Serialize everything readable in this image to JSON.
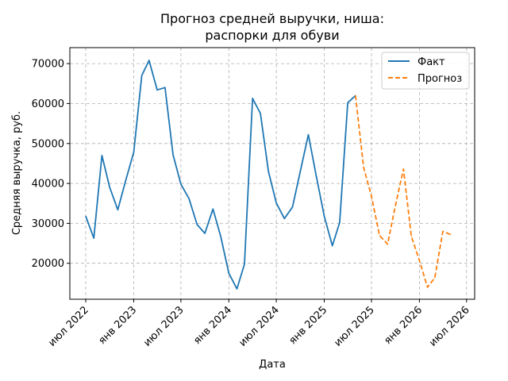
{
  "chart_data": {
    "type": "line",
    "title_lines": [
      "Прогноз средней выручки, ниша:",
      "распорки для обуви"
    ],
    "xlabel": "Дата",
    "ylabel": "Средняя выручка, руб.",
    "ylim": [
      11000,
      74000
    ],
    "yticks": [
      20000,
      30000,
      40000,
      50000,
      60000,
      70000
    ],
    "xlim": [
      "2022-05-01",
      "2026-08-01"
    ],
    "xticks": [
      {
        "date": "2022-07-01",
        "label": "июл 2022"
      },
      {
        "date": "2023-01-01",
        "label": "янв 2023"
      },
      {
        "date": "2023-07-01",
        "label": "июл 2023"
      },
      {
        "date": "2024-01-01",
        "label": "янв 2024"
      },
      {
        "date": "2024-07-01",
        "label": "июл 2024"
      },
      {
        "date": "2025-01-01",
        "label": "янв 2025"
      },
      {
        "date": "2025-07-01",
        "label": "июл 2025"
      },
      {
        "date": "2026-01-01",
        "label": "янв 2026"
      },
      {
        "date": "2026-07-01",
        "label": "июл 2026"
      }
    ],
    "grid": true,
    "legend_position": "top-right",
    "series": [
      {
        "name": "Факт",
        "color": "#1f77b4",
        "style": "solid",
        "x": [
          "2022-07-01",
          "2022-08-01",
          "2022-09-01",
          "2022-10-01",
          "2022-11-01",
          "2022-12-01",
          "2023-01-01",
          "2023-02-01",
          "2023-03-01",
          "2023-04-01",
          "2023-05-01",
          "2023-06-01",
          "2023-07-01",
          "2023-08-01",
          "2023-09-01",
          "2023-10-01",
          "2023-11-01",
          "2023-12-01",
          "2024-01-01",
          "2024-02-01",
          "2024-03-01",
          "2024-04-01",
          "2024-05-01",
          "2024-06-01",
          "2024-07-01",
          "2024-08-01",
          "2024-09-01",
          "2024-10-01",
          "2024-11-01",
          "2024-12-01",
          "2025-01-01",
          "2025-02-01",
          "2025-03-01",
          "2025-04-01",
          "2025-05-01"
        ],
        "y": [
          31800,
          26300,
          47000,
          39000,
          33400,
          40700,
          47800,
          67000,
          70800,
          63400,
          64000,
          47200,
          39800,
          36200,
          29700,
          27500,
          33600,
          26700,
          17500,
          13600,
          19800,
          61300,
          57500,
          43000,
          35100,
          31200,
          34100,
          43000,
          52200,
          42000,
          31800,
          24400,
          30200,
          60200,
          62000
        ]
      },
      {
        "name": "Прогноз",
        "color": "#ff7f0e",
        "style": "dashed",
        "x": [
          "2025-05-01",
          "2025-06-01",
          "2025-07-01",
          "2025-08-01",
          "2025-09-01",
          "2025-10-01",
          "2025-11-01",
          "2025-12-01",
          "2026-01-01",
          "2026-02-01",
          "2026-03-01",
          "2026-04-01",
          "2026-05-01"
        ],
        "y": [
          62000,
          44000,
          36800,
          27000,
          24800,
          34500,
          43600,
          26800,
          20700,
          14000,
          16400,
          28000,
          27200
        ]
      }
    ]
  }
}
